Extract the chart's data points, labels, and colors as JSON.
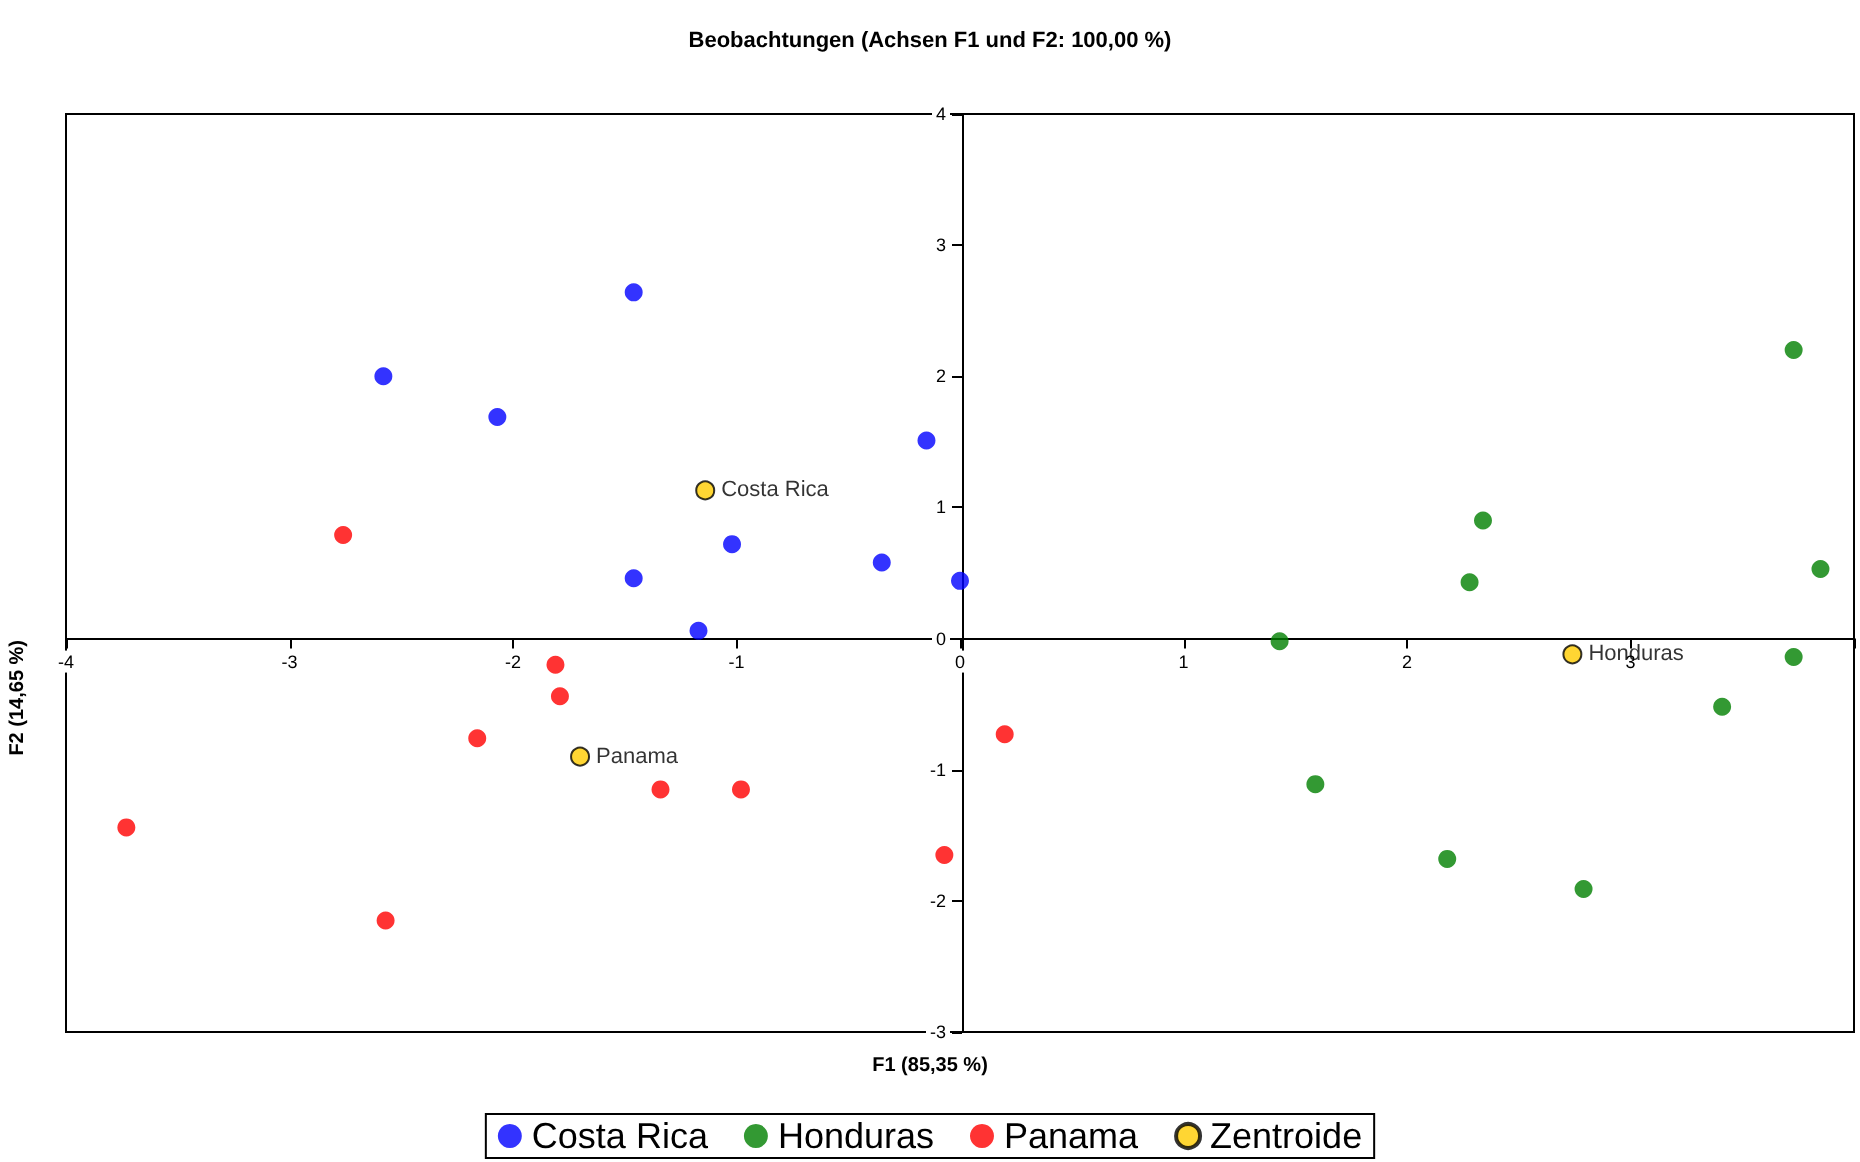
{
  "chart_data": {
    "type": "scatter",
    "title": "Beobachtungen (Achsen F1 und F2: 100,00 %)",
    "xlabel": "F1 (85,35 %)",
    "ylabel": "F2 (14,65 %)",
    "series": [
      {
        "name": "Costa Rica",
        "color": "#0000ff",
        "x": [
          -2.58,
          -1.46,
          -2.07,
          -0.15,
          -1.02,
          -0.35,
          -1.46,
          0.0,
          -1.17
        ],
        "values": [
          2.0,
          2.64,
          1.69,
          1.51,
          0.72,
          0.58,
          0.46,
          0.44,
          0.06
        ]
      },
      {
        "name": "Honduras",
        "color": "#008000",
        "x": [
          3.73,
          3.85,
          2.34,
          2.28,
          1.43,
          3.73,
          3.41,
          1.59,
          2.18,
          2.79
        ],
        "values": [
          2.2,
          0.53,
          0.9,
          0.43,
          -0.02,
          -0.14,
          -0.52,
          -1.11,
          -1.68,
          -1.91
        ]
      },
      {
        "name": "Panama",
        "color": "#ff0000",
        "x": [
          -2.76,
          -1.81,
          -1.79,
          -2.16,
          -3.73,
          -1.34,
          -0.98,
          0.2,
          -0.07,
          -2.57
        ],
        "values": [
          0.79,
          -0.2,
          -0.44,
          -0.76,
          -1.44,
          -1.15,
          -1.15,
          -0.73,
          -1.65,
          -2.15
        ]
      },
      {
        "name": "Zentroide",
        "color": "#ffcc00",
        "x": [
          -1.14,
          2.74,
          -1.7
        ],
        "values": [
          1.13,
          -0.12,
          -0.9
        ]
      }
    ],
    "annotations": [
      {
        "text": "Costa Rica",
        "x": -1.14,
        "y": 1.13
      },
      {
        "text": "Honduras",
        "x": 2.74,
        "y": -0.12
      },
      {
        "text": "Panama",
        "x": -1.7,
        "y": -0.9
      }
    ],
    "xlim": [
      -4,
      4
    ],
    "xticks": [
      -4,
      -3,
      -2,
      -1,
      0,
      1,
      2,
      3,
      {
        "value": 4,
        "label": null
      }
    ],
    "ylim": [
      -3,
      4
    ],
    "yticks": [
      -3,
      -2,
      -1,
      0,
      1,
      2,
      3,
      4
    ],
    "marker": "circle",
    "legend": "bottom"
  }
}
